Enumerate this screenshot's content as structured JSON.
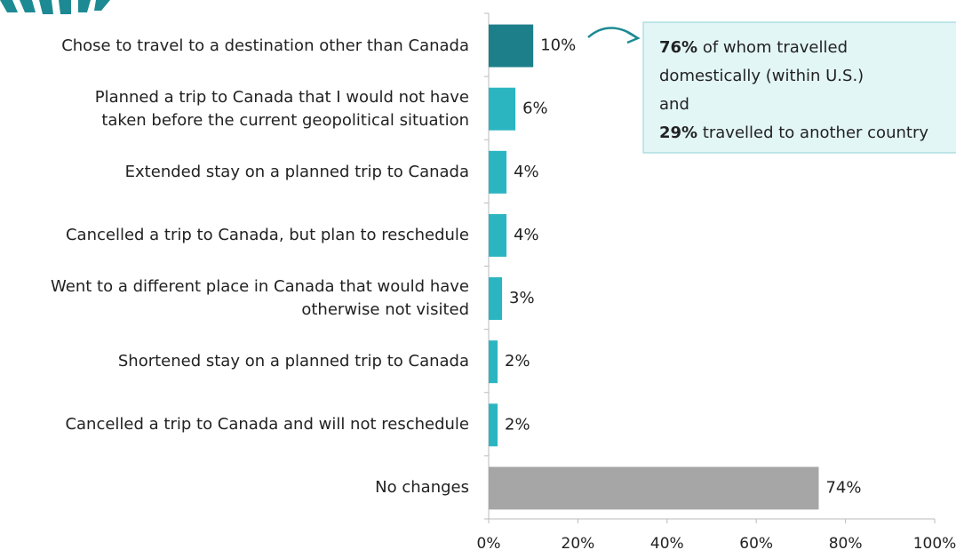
{
  "chart_data": {
    "type": "bar",
    "orientation": "horizontal",
    "categories": [
      "Chose to travel to a destination other than Canada",
      "Planned a trip to Canada that I would not have\ntaken before the current geopolitical situation",
      "Extended stay on a planned trip to Canada",
      "Cancelled a trip to Canada, but plan to reschedule",
      "Went to a different place in Canada that would have\notherwise not visited",
      "Shortened stay on a planned trip to Canada",
      "Cancelled a trip to Canada and will not reschedule",
      "No changes"
    ],
    "values": [
      10,
      6,
      4,
      4,
      3,
      2,
      2,
      74
    ],
    "value_labels": [
      "10%",
      "6%",
      "4%",
      "4%",
      "3%",
      "2%",
      "2%",
      "74%"
    ],
    "colors": [
      "#1d7f89",
      "#2bb5c1",
      "#2bb5c1",
      "#2bb5c1",
      "#2bb5c1",
      "#2bb5c1",
      "#2bb5c1",
      "#a6a6a6"
    ],
    "xlim": [
      0,
      100
    ],
    "xticks": [
      {
        "value": 0,
        "label": "0%"
      },
      {
        "value": 20,
        "label": "20%"
      },
      {
        "value": 40,
        "label": "40%"
      },
      {
        "value": 60,
        "label": "60%"
      },
      {
        "value": 80,
        "label": "80%"
      },
      {
        "value": 100,
        "label": "100%"
      }
    ],
    "annotation": {
      "line1_bold": "76%",
      "line1": " of whom travelled",
      "line2": "domestically (within U.S.)",
      "line3": "and",
      "line4_bold": "29%",
      "line4": " travelled to another country"
    }
  }
}
